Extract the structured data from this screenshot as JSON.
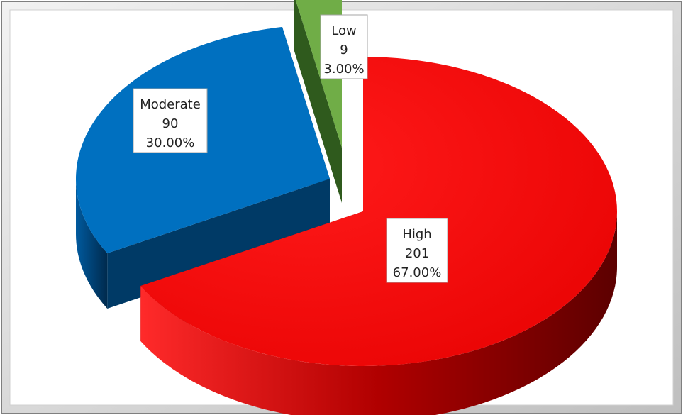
{
  "chart_data": {
    "type": "pie",
    "title": "",
    "three_d": true,
    "exploded": true,
    "categories": [
      "High",
      "Moderate",
      "Low"
    ],
    "values": [
      201,
      90,
      9
    ],
    "percents": [
      "67.00%",
      "30.00%",
      "3.00%"
    ],
    "slices": [
      {
        "label": "High",
        "value": 201,
        "percent": "67.00%",
        "color": "#ff0000",
        "side_color": "#8a0000"
      },
      {
        "label": "Moderate",
        "value": 90,
        "percent": "30.00%",
        "color": "#0070c0",
        "side_color": "#003a66"
      },
      {
        "label": "Low",
        "value": 9,
        "percent": "3.00%",
        "color": "#70ad47",
        "side_color": "#2f5a1d"
      }
    ],
    "legend": "none",
    "data_labels": "category, value, percent"
  },
  "colors": {
    "background": "#ffffff",
    "frame_outer": "#7f7f7f",
    "frame_inner": "#d9d9d9"
  }
}
